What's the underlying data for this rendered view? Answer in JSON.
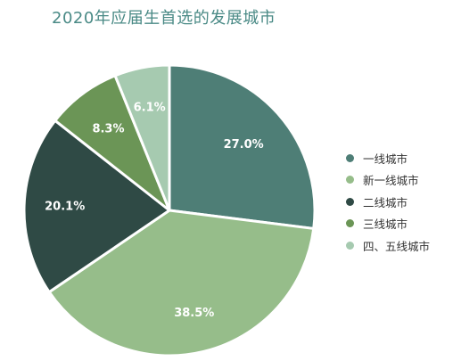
{
  "chart_data": {
    "type": "pie",
    "title": "2020年应届生首选的发展城市",
    "categories": [
      "一线城市",
      "新一线城市",
      "二线城市",
      "三线城市",
      "四、五线城市"
    ],
    "values": [
      27.0,
      38.5,
      20.1,
      8.3,
      6.1
    ],
    "value_labels": [
      "27.0%",
      "38.5%",
      "20.1%",
      "8.3%",
      "6.1%"
    ],
    "colors": [
      "#4e7e76",
      "#96bd8a",
      "#2f4a45",
      "#6b9556",
      "#a6cab0"
    ],
    "start_angle": "12 o'clock",
    "direction": "clockwise",
    "legend_position": "right"
  }
}
